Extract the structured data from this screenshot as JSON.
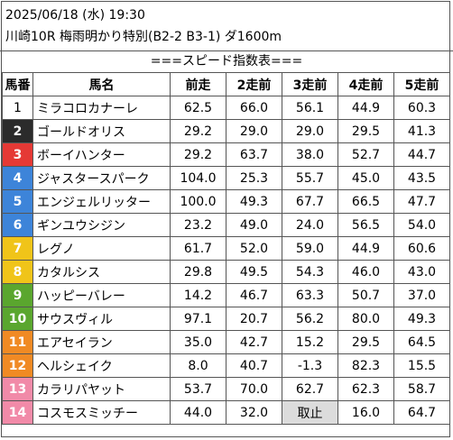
{
  "header": {
    "datetime": "2025/06/18 (水) 19:30",
    "race": "川崎10R 梅雨明かり特別(B2-2 B3-1) ダ1600m"
  },
  "table_title": "===スピード指数表===",
  "columns": [
    "馬番",
    "馬名",
    "前走",
    "2走前",
    "3走前",
    "4走前",
    "5走前"
  ],
  "gate_colors": {
    "1": {
      "bg": "#ffffff",
      "fg": "#000000"
    },
    "2": {
      "bg": "#2b2b2b",
      "fg": "#ffffff"
    },
    "3": {
      "bg": "#e53935",
      "fg": "#ffffff"
    },
    "4": {
      "bg": "#3d84d9",
      "fg": "#ffffff"
    },
    "5": {
      "bg": "#f0c419",
      "fg": "#ffffff"
    },
    "6": {
      "bg": "#5aa62e",
      "fg": "#ffffff"
    },
    "7": {
      "bg": "#f08a24",
      "fg": "#ffffff"
    },
    "8": {
      "bg": "#f18aa8",
      "fg": "#ffffff"
    }
  },
  "rows": [
    {
      "no": "1",
      "gate": 1,
      "name": "ミラコロカナーレ",
      "v": [
        "62.5",
        "66.0",
        "56.1",
        "44.9",
        "60.3"
      ]
    },
    {
      "no": "2",
      "gate": 2,
      "name": "ゴールドオリス",
      "v": [
        "29.2",
        "29.0",
        "29.0",
        "29.5",
        "41.3"
      ]
    },
    {
      "no": "3",
      "gate": 3,
      "name": "ボーイハンター",
      "v": [
        "29.2",
        "63.7",
        "38.0",
        "52.7",
        "44.7"
      ]
    },
    {
      "no": "4",
      "gate": 4,
      "name": "ジャスタースパーク",
      "v": [
        "104.0",
        "25.3",
        "55.7",
        "45.0",
        "43.5"
      ]
    },
    {
      "no": "5",
      "gate": 4,
      "name": "エンジェルリッター",
      "v": [
        "100.0",
        "49.3",
        "67.7",
        "66.5",
        "47.7"
      ]
    },
    {
      "no": "6",
      "gate": 4,
      "name": "ギンユウシジン",
      "v": [
        "23.2",
        "49.0",
        "24.0",
        "56.5",
        "54.0"
      ]
    },
    {
      "no": "7",
      "gate": 5,
      "name": "レグノ",
      "v": [
        "61.7",
        "52.0",
        "59.0",
        "44.9",
        "60.6"
      ]
    },
    {
      "no": "8",
      "gate": 5,
      "name": "カタルシス",
      "v": [
        "29.8",
        "49.5",
        "54.3",
        "46.0",
        "43.0"
      ]
    },
    {
      "no": "9",
      "gate": 6,
      "name": "ハッピーバレー",
      "v": [
        "14.2",
        "46.7",
        "63.3",
        "50.7",
        "37.0"
      ]
    },
    {
      "no": "10",
      "gate": 6,
      "name": "サウスヴィル",
      "v": [
        "97.1",
        "20.7",
        "56.2",
        "80.0",
        "49.3"
      ]
    },
    {
      "no": "11",
      "gate": 7,
      "name": "エアセイラン",
      "v": [
        "35.0",
        "42.7",
        "15.2",
        "29.5",
        "64.5"
      ]
    },
    {
      "no": "12",
      "gate": 7,
      "name": "ヘルシェイク",
      "v": [
        "8.0",
        "40.7",
        "-1.3",
        "82.3",
        "15.5"
      ]
    },
    {
      "no": "13",
      "gate": 8,
      "name": "カラリパヤット",
      "v": [
        "53.7",
        "70.0",
        "62.7",
        "62.3",
        "58.7"
      ]
    },
    {
      "no": "14",
      "gate": 8,
      "name": "コスモスミッチー",
      "v": [
        "44.0",
        "32.0",
        "取止",
        "16.0",
        "64.7"
      ]
    }
  ]
}
